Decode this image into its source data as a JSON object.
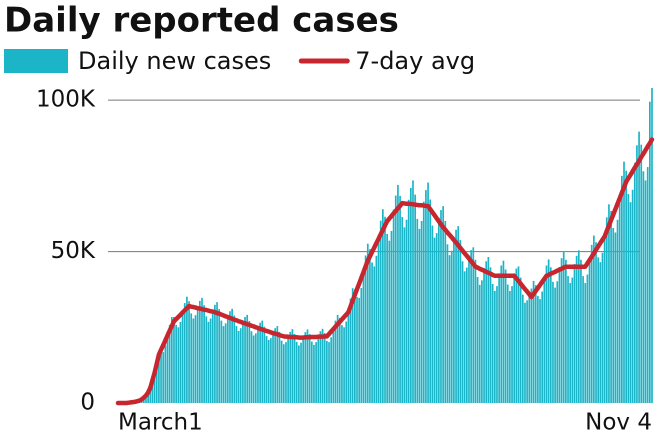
{
  "chart_data": {
    "type": "bar",
    "title": "Daily reported cases",
    "legend": "top",
    "grid": true,
    "ylim": [
      0,
      105000
    ],
    "yticks": [
      0,
      {
        "value": 50000,
        "label": "50K"
      },
      {
        "value": 100000,
        "label": "100K"
      }
    ],
    "categories": [
      "March1",
      null,
      null,
      null,
      null,
      null,
      null,
      null,
      null,
      null,
      null,
      null,
      null,
      null,
      null,
      null,
      null,
      null,
      null,
      null,
      null,
      null,
      null,
      null,
      null,
      null,
      null,
      null,
      null,
      null,
      null,
      null,
      null,
      null,
      null,
      null,
      null,
      null,
      null,
      null,
      null,
      null,
      null,
      null,
      null,
      null,
      null,
      null,
      null,
      null,
      null,
      null,
      null,
      null,
      null,
      null,
      null,
      null,
      null,
      null,
      null,
      null,
      null,
      null,
      null,
      null,
      null,
      null,
      null,
      null,
      null,
      null,
      null,
      null,
      null,
      null,
      null,
      null,
      null,
      null,
      null,
      null,
      null,
      null,
      null,
      null,
      null,
      null,
      null,
      null,
      null,
      null,
      null,
      null,
      null,
      null,
      null,
      null,
      null,
      null,
      null,
      null,
      null,
      null,
      null,
      null,
      null,
      null,
      null,
      null,
      null,
      null,
      null,
      null,
      null,
      null,
      null,
      null,
      null,
      null,
      null,
      null,
      null,
      null,
      null,
      null,
      null,
      null,
      null,
      null,
      null,
      null,
      null,
      null,
      null,
      null,
      null,
      null,
      null,
      null,
      null,
      null,
      null,
      null,
      null,
      null,
      null,
      null,
      null,
      null,
      null,
      null,
      null,
      null,
      null,
      null,
      null,
      null,
      null,
      null,
      null,
      null,
      null,
      null,
      null,
      null,
      null,
      null,
      null,
      null,
      null,
      null,
      null,
      null,
      null,
      null,
      null,
      null,
      null,
      null,
      null,
      null,
      null,
      null,
      null,
      null,
      null,
      null,
      null,
      null,
      null,
      null,
      null,
      null,
      null,
      null,
      null,
      null,
      null,
      null,
      null,
      null,
      null,
      null,
      null,
      null,
      null,
      null,
      null,
      null,
      null,
      null,
      null,
      null,
      null,
      null,
      null,
      null,
      null,
      null,
      null,
      null,
      null,
      null,
      null,
      null,
      null,
      null,
      null,
      null,
      null,
      null,
      null,
      null,
      null,
      null,
      null,
      null,
      null,
      null,
      null,
      null,
      null,
      null,
      null,
      null,
      null,
      null,
      "Nov 4"
    ],
    "series": [
      {
        "name": "Daily new cases",
        "type": "bar",
        "color": "#1cb5c8",
        "values": [
          0,
          0,
          0,
          0,
          0,
          100,
          200,
          300,
          400,
          600,
          900,
          1300,
          1900,
          2300,
          3100,
          4600,
          7700,
          10800,
          14600,
          16800,
          16400,
          16800,
          19000,
          22700,
          25800,
          28400,
          28400,
          25800,
          25000,
          26800,
          30500,
          33000,
          35100,
          33600,
          29600,
          27900,
          29000,
          31900,
          33700,
          34700,
          32300,
          28600,
          26800,
          27900,
          30800,
          32400,
          33300,
          31000,
          27200,
          25400,
          26300,
          29000,
          30300,
          31100,
          28900,
          25400,
          23800,
          24700,
          27000,
          28400,
          29100,
          27100,
          23700,
          22300,
          23000,
          25300,
          26500,
          27200,
          25200,
          22100,
          20800,
          21400,
          23600,
          24700,
          25400,
          23500,
          20600,
          19400,
          20100,
          22300,
          23500,
          24400,
          22800,
          20200,
          19000,
          19900,
          22000,
          23400,
          24300,
          22800,
          20300,
          19200,
          20100,
          22300,
          23700,
          24500,
          23100,
          20500,
          20100,
          21700,
          24900,
          27200,
          29100,
          28100,
          25700,
          25000,
          26900,
          30600,
          34500,
          37900,
          37500,
          35000,
          34700,
          38000,
          44100,
          48700,
          52600,
          50800,
          46400,
          45100,
          48600,
          55300,
          60200,
          64000,
          61500,
          55800,
          53600,
          56800,
          63900,
          68500,
          72000,
          68400,
          61400,
          58000,
          60500,
          67100,
          71000,
          73500,
          68800,
          60800,
          57500,
          60100,
          66500,
          70300,
          72800,
          67200,
          58600,
          54600,
          56100,
          61200,
          63700,
          65000,
          60100,
          52400,
          48800,
          50300,
          54900,
          57200,
          58400,
          53800,
          46800,
          43500,
          44700,
          48700,
          50500,
          51400,
          47300,
          41600,
          39000,
          40500,
          44600,
          46800,
          48200,
          44800,
          39300,
          37000,
          38600,
          42800,
          45400,
          47000,
          44100,
          39100,
          37000,
          38600,
          42800,
          44400,
          45100,
          41400,
          35800,
          33100,
          33900,
          36600,
          37800,
          40300,
          38900,
          35300,
          34300,
          36800,
          41800,
          45400,
          47400,
          44800,
          40000,
          38100,
          40200,
          44900,
          47800,
          50100,
          47300,
          41900,
          39600,
          41400,
          45900,
          48600,
          50400,
          47300,
          41900,
          39600,
          42400,
          48100,
          52200,
          55300,
          53100,
          48100,
          46500,
          49600,
          56100,
          61300,
          65600,
          63400,
          57800,
          56300,
          60500,
          69000,
          75000,
          79700,
          76700,
          69000,
          66300,
          70400,
          79300,
          85100,
          89600,
          85300,
          76500,
          73500,
          77900,
          99500,
          104000
        ]
      },
      {
        "name": "7-day avg",
        "type": "line",
        "color": "#c8262e",
        "values": [
          0,
          0,
          0,
          0,
          0,
          100,
          200,
          300,
          400,
          600,
          800,
          1200,
          1800,
          2500,
          3500,
          5000,
          7500,
          10000,
          13000,
          16000,
          17600,
          19100,
          20700,
          22300,
          23900,
          25400,
          27000,
          27700,
          28400,
          29100,
          29900,
          30600,
          31300,
          32000,
          31800,
          31700,
          31500,
          31300,
          31200,
          31000,
          30800,
          30700,
          30500,
          30300,
          30200,
          30000,
          29700,
          29500,
          29200,
          28900,
          28600,
          28400,
          28100,
          27800,
          27500,
          27300,
          27000,
          26800,
          26500,
          26300,
          26000,
          25800,
          25500,
          25300,
          25000,
          24800,
          24500,
          24300,
          24000,
          23800,
          23600,
          23300,
          23100,
          22900,
          22700,
          22400,
          22200,
          22000,
          21900,
          21900,
          21800,
          21800,
          21700,
          21700,
          21600,
          21600,
          21600,
          21700,
          21700,
          21700,
          21800,
          21800,
          21800,
          21900,
          21900,
          21900,
          22000,
          22000,
          22800,
          23600,
          24400,
          25200,
          26000,
          26800,
          27600,
          28400,
          29200,
          30000,
          31900,
          33800,
          35700,
          37600,
          39400,
          41300,
          43200,
          45100,
          47000,
          48400,
          49900,
          51300,
          52800,
          54200,
          55700,
          57100,
          58600,
          60000,
          60900,
          61700,
          62600,
          63400,
          64300,
          65100,
          66000,
          65900,
          65800,
          65800,
          65700,
          65600,
          65500,
          65400,
          65300,
          65300,
          65200,
          65100,
          65000,
          64000,
          63000,
          62000,
          61000,
          60000,
          59000,
          58000,
          57200,
          56300,
          55500,
          54700,
          53800,
          53000,
          52100,
          51200,
          50300,
          49400,
          48600,
          47700,
          46800,
          45900,
          45000,
          44700,
          44300,
          44000,
          43700,
          43300,
          43000,
          42700,
          42300,
          42000,
          42000,
          42000,
          42000,
          42000,
          42000,
          42000,
          42000,
          42000,
          42000,
          41100,
          40300,
          39400,
          38500,
          37600,
          36800,
          35900,
          35000,
          36000,
          37000,
          38000,
          39000,
          40000,
          41000,
          42000,
          42300,
          42700,
          43000,
          43300,
          43700,
          44000,
          44300,
          44700,
          45000,
          45000,
          45000,
          45000,
          45000,
          45000,
          45000,
          45000,
          45000,
          45000,
          46100,
          47200,
          48300,
          49400,
          50600,
          51700,
          52800,
          53900,
          55000,
          56800,
          58600,
          60400,
          62200,
          64000,
          65800,
          67600,
          69400,
          71200,
          73000,
          74200,
          75300,
          76500,
          77700,
          78800,
          80000,
          81200,
          82300,
          83500,
          84700,
          85800,
          87000
        ]
      }
    ]
  }
}
